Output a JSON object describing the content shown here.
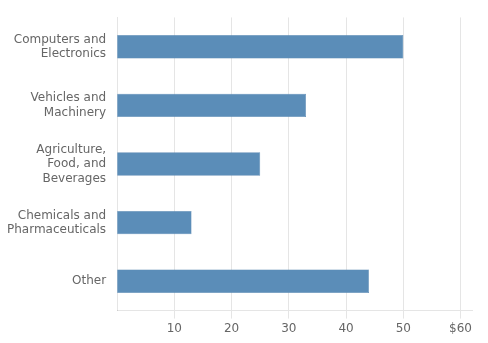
{
  "chart_data": {
    "type": "bar",
    "orientation": "horizontal",
    "categories": [
      "Other",
      "Chemicals and\nPharmaceuticals",
      "Agriculture,\nFood, and\nBeverages",
      "Vehicles and\nMachinery",
      "Computers and\nElectronics"
    ],
    "values": [
      44,
      13,
      25,
      33,
      50
    ],
    "color": "#5b8db8",
    "xlim": [
      0,
      62
    ],
    "xticks": [
      10,
      20,
      30,
      40,
      50,
      {
        "value": 60,
        "label": "$60"
      }
    ],
    "grid": true
  }
}
